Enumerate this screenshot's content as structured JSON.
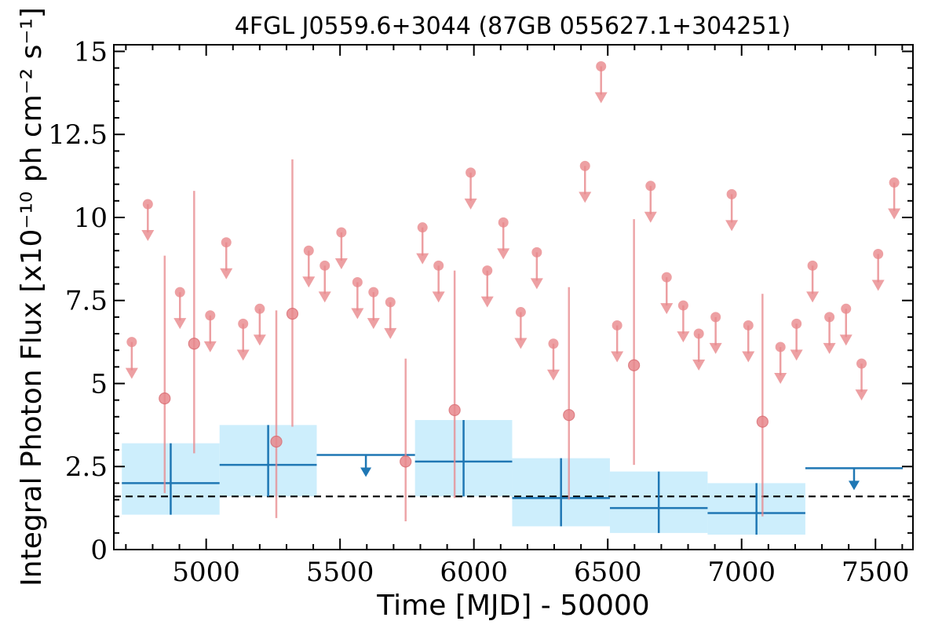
{
  "chart_data": {
    "type": "scatter",
    "title": "4FGL J0559.6+3044 (87GB 055627.1+304251)",
    "xlabel": "Time [MJD] - 50000",
    "ylabel": "Integral Photon Flux [x10⁻¹⁰ ph cm⁻² s⁻¹]",
    "xlim": [
      4655,
      7640
    ],
    "ylim": [
      0,
      15.2
    ],
    "xticks": [
      5000,
      5500,
      6000,
      6500,
      7000,
      7500
    ],
    "xtick_labels": [
      "5000",
      "5500",
      "6000",
      "6500",
      "7000",
      "7500"
    ],
    "yticks": [
      0,
      2.5,
      5,
      7.5,
      10,
      12.5,
      15
    ],
    "ytick_labels": [
      "0",
      "2.5",
      "5",
      "7.5",
      "10",
      "12.5",
      "15"
    ],
    "reference_line": {
      "y": 1.6,
      "style": "dashed"
    },
    "colors": {
      "short_bin": "#e8888c",
      "long_bin": "#1f77b4",
      "band": "#cdeefc"
    },
    "series": [
      {
        "bin": "short",
        "detections": [
          {
            "x": 4845,
            "y": 4.55,
            "ylo": 1.7,
            "yhi": 8.85
          },
          {
            "x": 4955,
            "y": 6.2,
            "ylo": 2.9,
            "yhi": 10.8
          },
          {
            "x": 5262,
            "y": 3.25,
            "ylo": 0.95,
            "yhi": 7.2
          },
          {
            "x": 5322,
            "y": 7.1,
            "ylo": 3.7,
            "yhi": 11.75
          },
          {
            "x": 5745,
            "y": 2.65,
            "ylo": 0.85,
            "yhi": 5.75
          },
          {
            "x": 5928,
            "y": 4.2,
            "ylo": 1.55,
            "yhi": 8.4
          },
          {
            "x": 6355,
            "y": 4.05,
            "ylo": 1.5,
            "yhi": 7.9
          },
          {
            "x": 6598,
            "y": 5.55,
            "ylo": 2.55,
            "yhi": 9.95
          },
          {
            "x": 7078,
            "y": 3.85,
            "ylo": 1.0,
            "yhi": 7.7
          }
        ],
        "upper_limits": [
          {
            "x": 4722,
            "y": 6.25
          },
          {
            "x": 4782,
            "y": 10.4
          },
          {
            "x": 4902,
            "y": 7.75
          },
          {
            "x": 5015,
            "y": 7.05
          },
          {
            "x": 5075,
            "y": 9.25
          },
          {
            "x": 5138,
            "y": 6.8
          },
          {
            "x": 5200,
            "y": 7.25
          },
          {
            "x": 5383,
            "y": 9.0
          },
          {
            "x": 5443,
            "y": 8.55
          },
          {
            "x": 5505,
            "y": 9.55
          },
          {
            "x": 5565,
            "y": 8.05
          },
          {
            "x": 5625,
            "y": 7.75
          },
          {
            "x": 5688,
            "y": 7.45
          },
          {
            "x": 5808,
            "y": 9.7
          },
          {
            "x": 5868,
            "y": 8.55
          },
          {
            "x": 5988,
            "y": 11.35
          },
          {
            "x": 6050,
            "y": 8.4
          },
          {
            "x": 6110,
            "y": 9.85
          },
          {
            "x": 6175,
            "y": 7.15
          },
          {
            "x": 6235,
            "y": 8.95
          },
          {
            "x": 6297,
            "y": 6.2
          },
          {
            "x": 6475,
            "y": 14.55
          },
          {
            "x": 6535,
            "y": 6.75
          },
          {
            "x": 6415,
            "y": 11.55
          },
          {
            "x": 6660,
            "y": 10.95
          },
          {
            "x": 6720,
            "y": 8.2
          },
          {
            "x": 6782,
            "y": 7.35
          },
          {
            "x": 6840,
            "y": 6.5
          },
          {
            "x": 6903,
            "y": 7.0
          },
          {
            "x": 6963,
            "y": 10.7
          },
          {
            "x": 7025,
            "y": 6.75
          },
          {
            "x": 7145,
            "y": 6.1
          },
          {
            "x": 7205,
            "y": 6.8
          },
          {
            "x": 7265,
            "y": 8.55
          },
          {
            "x": 7328,
            "y": 7.0
          },
          {
            "x": 7390,
            "y": 7.25
          },
          {
            "x": 7448,
            "y": 5.6
          },
          {
            "x": 7510,
            "y": 8.9
          },
          {
            "x": 7570,
            "y": 11.05
          }
        ]
      },
      {
        "bin": "long",
        "detections": [
          {
            "x0": 4685,
            "x1": 5050,
            "y": 2.0,
            "ylo": 1.05,
            "yhi": 3.2
          },
          {
            "x0": 5050,
            "x1": 5413,
            "y": 2.55,
            "ylo": 1.6,
            "yhi": 3.75
          },
          {
            "x0": 5780,
            "x1": 6143,
            "y": 2.65,
            "ylo": 1.6,
            "yhi": 3.9
          },
          {
            "x0": 6143,
            "x1": 6508,
            "y": 1.55,
            "ylo": 0.7,
            "yhi": 2.75
          },
          {
            "x0": 6508,
            "x1": 6873,
            "y": 1.25,
            "ylo": 0.5,
            "yhi": 2.35
          },
          {
            "x0": 6873,
            "x1": 7238,
            "y": 1.1,
            "ylo": 0.45,
            "yhi": 2.0
          }
        ],
        "upper_limits": [
          {
            "x0": 5413,
            "x1": 5780,
            "y": 2.85
          },
          {
            "x0": 7238,
            "x1": 7602,
            "y": 2.45
          }
        ]
      }
    ]
  }
}
